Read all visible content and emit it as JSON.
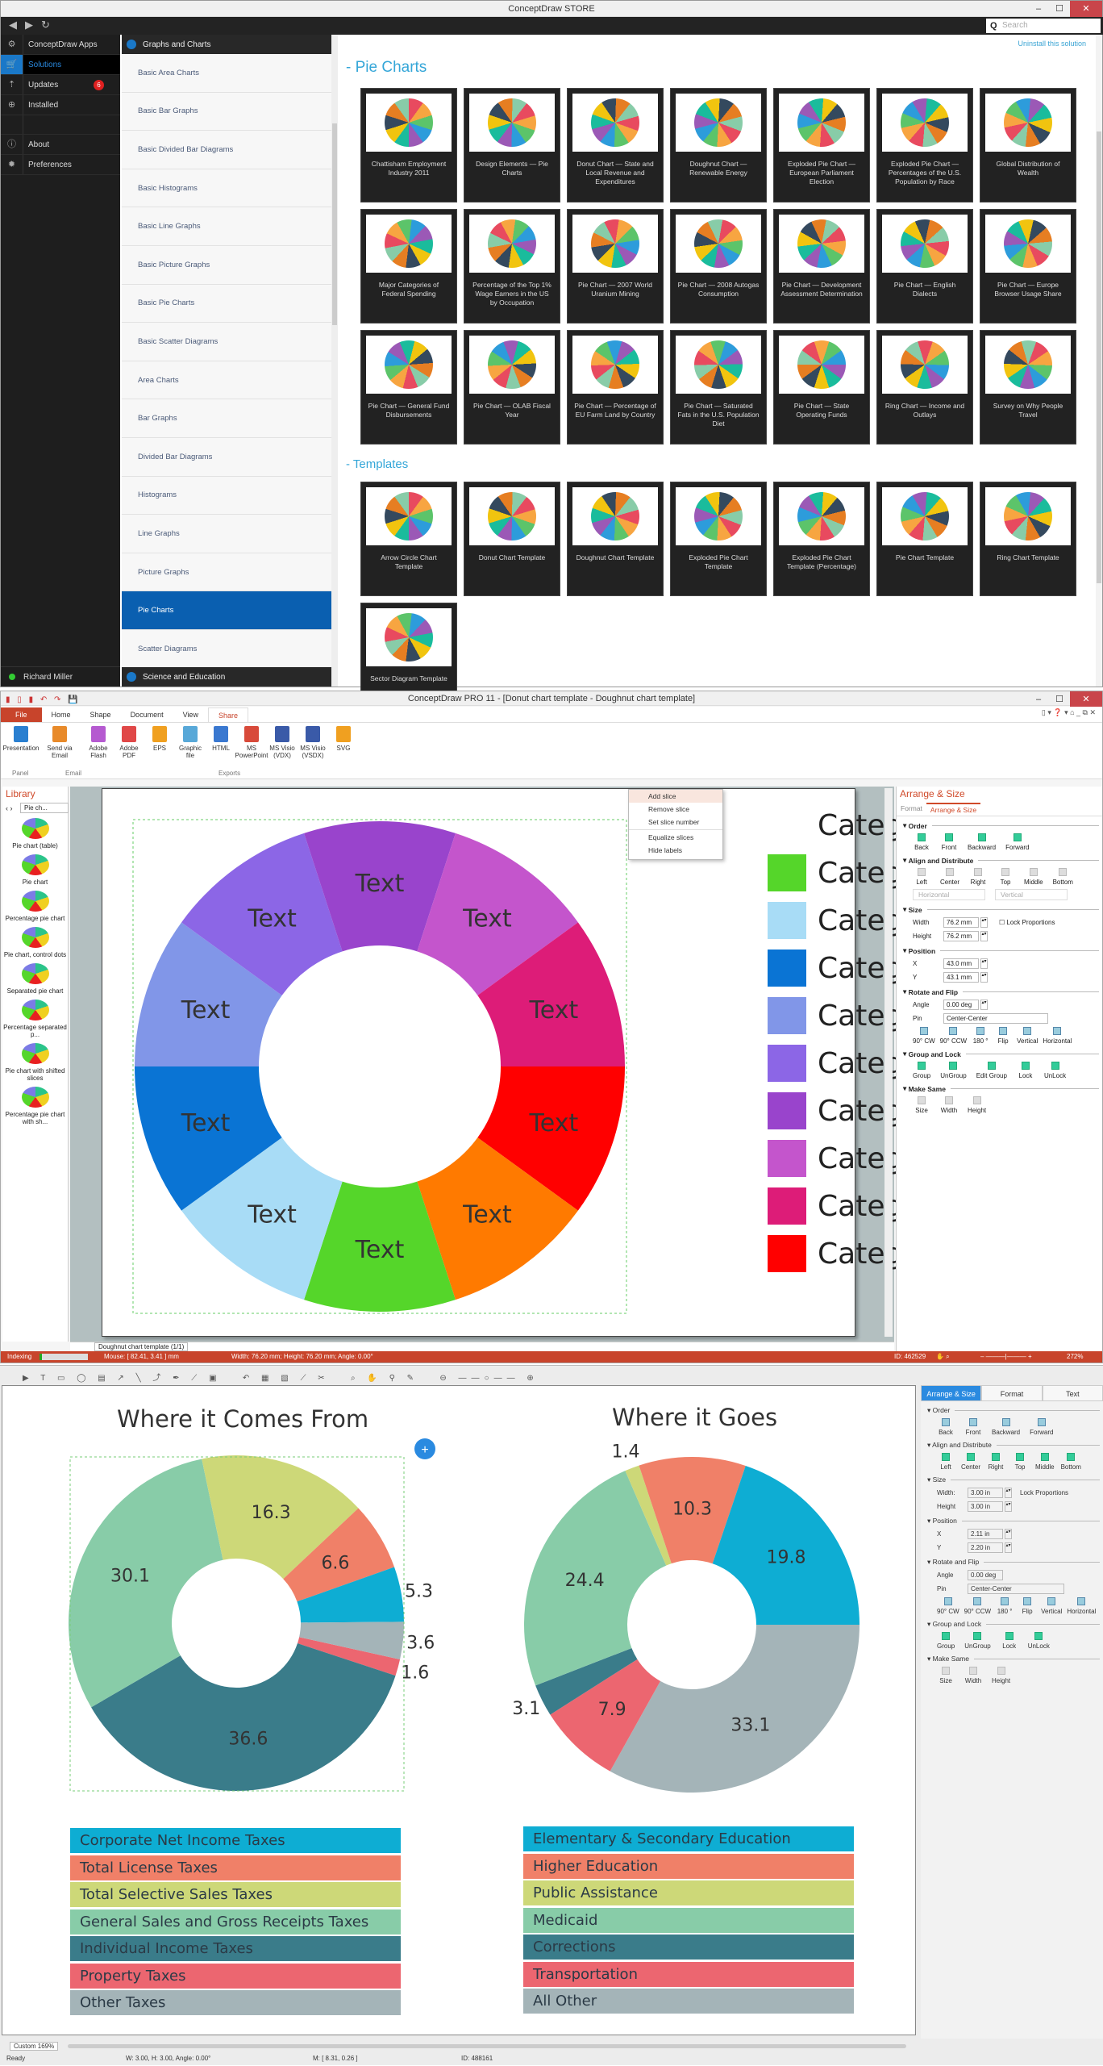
{
  "store": {
    "title": "ConceptDraw STORE",
    "search_placeholder": "Search",
    "nav": [
      {
        "label": "ConceptDraw Apps",
        "icon": "apps-icon"
      },
      {
        "label": "Solutions",
        "icon": "cart-icon",
        "active": true
      },
      {
        "label": "Updates",
        "icon": "updates-icon",
        "badge": "6"
      },
      {
        "label": "Installed",
        "icon": "download-icon"
      },
      {
        "label": "",
        "icon": ""
      },
      {
        "label": "About",
        "icon": "info-icon"
      },
      {
        "label": "Preferences",
        "icon": "gear-icon"
      }
    ],
    "user": "Richard Miller",
    "category_header": "Graphs and Charts",
    "categories": [
      "Basic Area Charts",
      "Basic Bar Graphs",
      "Basic Divided Bar Diagrams",
      "Basic Histograms",
      "Basic Line Graphs",
      "Basic Picture Graphs",
      "Basic Pie Charts",
      "Basic Scatter Diagrams",
      "Area Charts",
      "Bar Graphs",
      "Divided Bar Diagrams",
      "Histograms",
      "Line Graphs",
      "Picture Graphs",
      "Pie Charts",
      "Scatter Diagrams"
    ],
    "selected_category": "Pie Charts",
    "category_footer": "Science and Education",
    "uninstall": "Uninstall this solution",
    "section_examples": "- Pie Charts",
    "section_templates": "- Templates",
    "examples": [
      "Chattisham Employment Industry 2011",
      "Design Elements — Pie Charts",
      "Donut Chart — State and Local Revenue and Expenditures",
      "Doughnut Chart — Renewable Energy",
      "Exploded Pie Chart — European Parliament Election",
      "Exploded Pie Chart — Percentages of the U.S. Population by Race",
      "Global Distribution of Wealth",
      "Major Categories of Federal Spending",
      "Percentage of the Top 1% Wage Earners in the US by Occupation",
      "Pie Chart — 2007 World Uranium Mining",
      "Pie Chart — 2008 Autogas Consumption",
      "Pie Chart — Development Assessment Determination",
      "Pie Chart — English Dialects",
      "Pie Chart — Europe Browser Usage Share",
      "Pie Chart — General Fund Disbursements",
      "Pie Chart — OLAB Fiscal Year",
      "Pie Chart — Percentage of EU Farm Land by Country",
      "Pie Chart — Saturated Fats in the U.S. Population Diet",
      "Pie Chart — State Operating Funds",
      "Ring Chart — Income and Outlays",
      "Survey on Why People Travel"
    ],
    "templates": [
      "Arrow Circle Chart Template",
      "Donut Chart Template",
      "Doughnut Chart Template",
      "Exploded Pie Chart Template",
      "Exploded Pie Chart Template (Percentage)",
      "Pie Chart Template",
      "Ring Chart Template",
      "Sector Diagram Template"
    ]
  },
  "pro": {
    "title": "ConceptDraw PRO 11 - [Donut chart template - Doughnut chart template]",
    "menu": [
      "File",
      "Home",
      "Shape",
      "Document",
      "View",
      "Share"
    ],
    "active_menu": "Share",
    "ribbon": [
      {
        "label": "Presentation",
        "color": "#2a7fd0"
      },
      {
        "label": "Send via Email",
        "color": "#e88a2a"
      },
      {
        "label": "Adobe Flash",
        "color": "#b55ad0"
      },
      {
        "label": "Adobe PDF",
        "color": "#e04848"
      },
      {
        "label": "EPS",
        "color": "#f0a020"
      },
      {
        "label": "Graphic file",
        "color": "#58a8d8"
      },
      {
        "label": "HTML",
        "color": "#3a78d0"
      },
      {
        "label": "MS PowerPoint",
        "color": "#d84a3a"
      },
      {
        "label": "MS Visio (VDX)",
        "color": "#3a5aa8"
      },
      {
        "label": "MS Visio (VSDX)",
        "color": "#3a5aa8"
      },
      {
        "label": "SVG",
        "color": "#f0a020"
      }
    ],
    "ribbon_groups": [
      "Panel",
      "Email",
      "Exports"
    ],
    "library": {
      "title": "Library",
      "dropdown": "Pie ch...",
      "items": [
        "Pie chart (table)",
        "Pie chart",
        "Percentage pie chart",
        "Pie chart, control dots",
        "Separated pie chart",
        "Percentage separated p...",
        "Pie chart with shifted slices",
        "Percentage pie chart with sh..."
      ]
    },
    "context_menu": [
      "Add slice",
      "Remove slice",
      "Set slice number",
      "Equalize slices",
      "Hide labels"
    ],
    "slice_label": "Text",
    "legend_label": "Category",
    "page_tab": "Doughnut chart template (1/1)",
    "panel": {
      "title": "Arrange & Size",
      "tabs": [
        "Format",
        "Arrange & Size"
      ],
      "order": [
        "Back",
        "Front",
        "Backward",
        "Forward"
      ],
      "align": [
        "Left",
        "Center",
        "Right",
        "Top",
        "Middle",
        "Bottom"
      ],
      "distribute": [
        "Horizontal",
        "Vertical"
      ],
      "width": "76.2 mm",
      "height": "76.2 mm",
      "lock": "Lock Proportions",
      "x": "43.0 mm",
      "y": "43.1 mm",
      "angle": "0.00 deg",
      "pin": "Center-Center",
      "rotate": [
        "90° CW",
        "90° CCW",
        "180 °",
        "Flip",
        "Vertical",
        "Horizontal"
      ],
      "group": [
        "Group",
        "UnGroup",
        "Edit Group",
        "Lock",
        "UnLock"
      ],
      "same": [
        "Size",
        "Width",
        "Height"
      ],
      "sections": [
        "Order",
        "Align and Distribute",
        "Size",
        "Position",
        "Rotate and Flip",
        "Group and Lock",
        "Make Same"
      ]
    },
    "status": {
      "indexing": "Indexing",
      "mouse": "Mouse: [ 82.41, 3.41 ] mm",
      "dims": "Width: 76.20 mm;  Height: 76.20 mm;  Angle: 0.00°",
      "id": "ID: 462529",
      "zoom": "272%"
    }
  },
  "mac": {
    "panel": {
      "tabs": [
        "Arrange & Size",
        "Format",
        "Text"
      ],
      "width": "3.00 in",
      "height": "3.00 in",
      "x": "2.11 in",
      "y": "2.20 in",
      "angle": "0.00 deg",
      "pin": "Center-Center",
      "lock": "Lock Proportions",
      "group": [
        "Group",
        "UnGroup",
        "Lock",
        "UnLock"
      ]
    },
    "status": {
      "zoom": "Custom 169%",
      "ready": "Ready",
      "dims": "W: 3.00,  H: 3.00,  Angle: 0.00°",
      "mouse": "M: [ 8.31, 0.26 ]",
      "id": "ID: 488161"
    }
  },
  "chart_data": [
    {
      "type": "pie",
      "title": "Where it Comes From",
      "categories": [
        "Corporate Net Income Taxes",
        "Total License Taxes",
        "Total Selective Sales Taxes",
        "General Sales and Gross Receipts Taxes",
        "Individual Income Taxes",
        "Property Taxes",
        "Other Taxes"
      ],
      "values": [
        5.3,
        6.6,
        16.3,
        30.1,
        36.6,
        1.6,
        3.6
      ],
      "colors": [
        "#0eadd3",
        "#f08068",
        "#cdd878",
        "#88cca8",
        "#3a7c8a",
        "#ec6670",
        "#a4b4b8"
      ]
    },
    {
      "type": "pie",
      "title": "Where it Goes",
      "categories": [
        "Elementary & Secondary Education",
        "Higher Education",
        "Public Assistance",
        "Medicaid",
        "Corrections",
        "Transportation",
        "All Other"
      ],
      "values": [
        19.8,
        10.3,
        1.4,
        24.4,
        3.1,
        7.9,
        33.1
      ],
      "colors": [
        "#0eadd3",
        "#f08068",
        "#cdd878",
        "#88cca8",
        "#3a7c8a",
        "#ec6670",
        "#a4b4b8"
      ]
    },
    {
      "type": "pie",
      "title": "Doughnut chart template",
      "categories": [
        "Category",
        "Category",
        "Category",
        "Category",
        "Category",
        "Category",
        "Category",
        "Category",
        "Category",
        "Category"
      ],
      "values": [
        10,
        10,
        10,
        10,
        10,
        10,
        10,
        10,
        10,
        10
      ],
      "colors": [
        "#ff0000",
        "#ff7a00",
        "#55d62a",
        "#a8dcf6",
        "#0a74d4",
        "#8196e8",
        "#8c66e6",
        "#9944cc",
        "#c455cc",
        "#dd1c78"
      ]
    }
  ]
}
